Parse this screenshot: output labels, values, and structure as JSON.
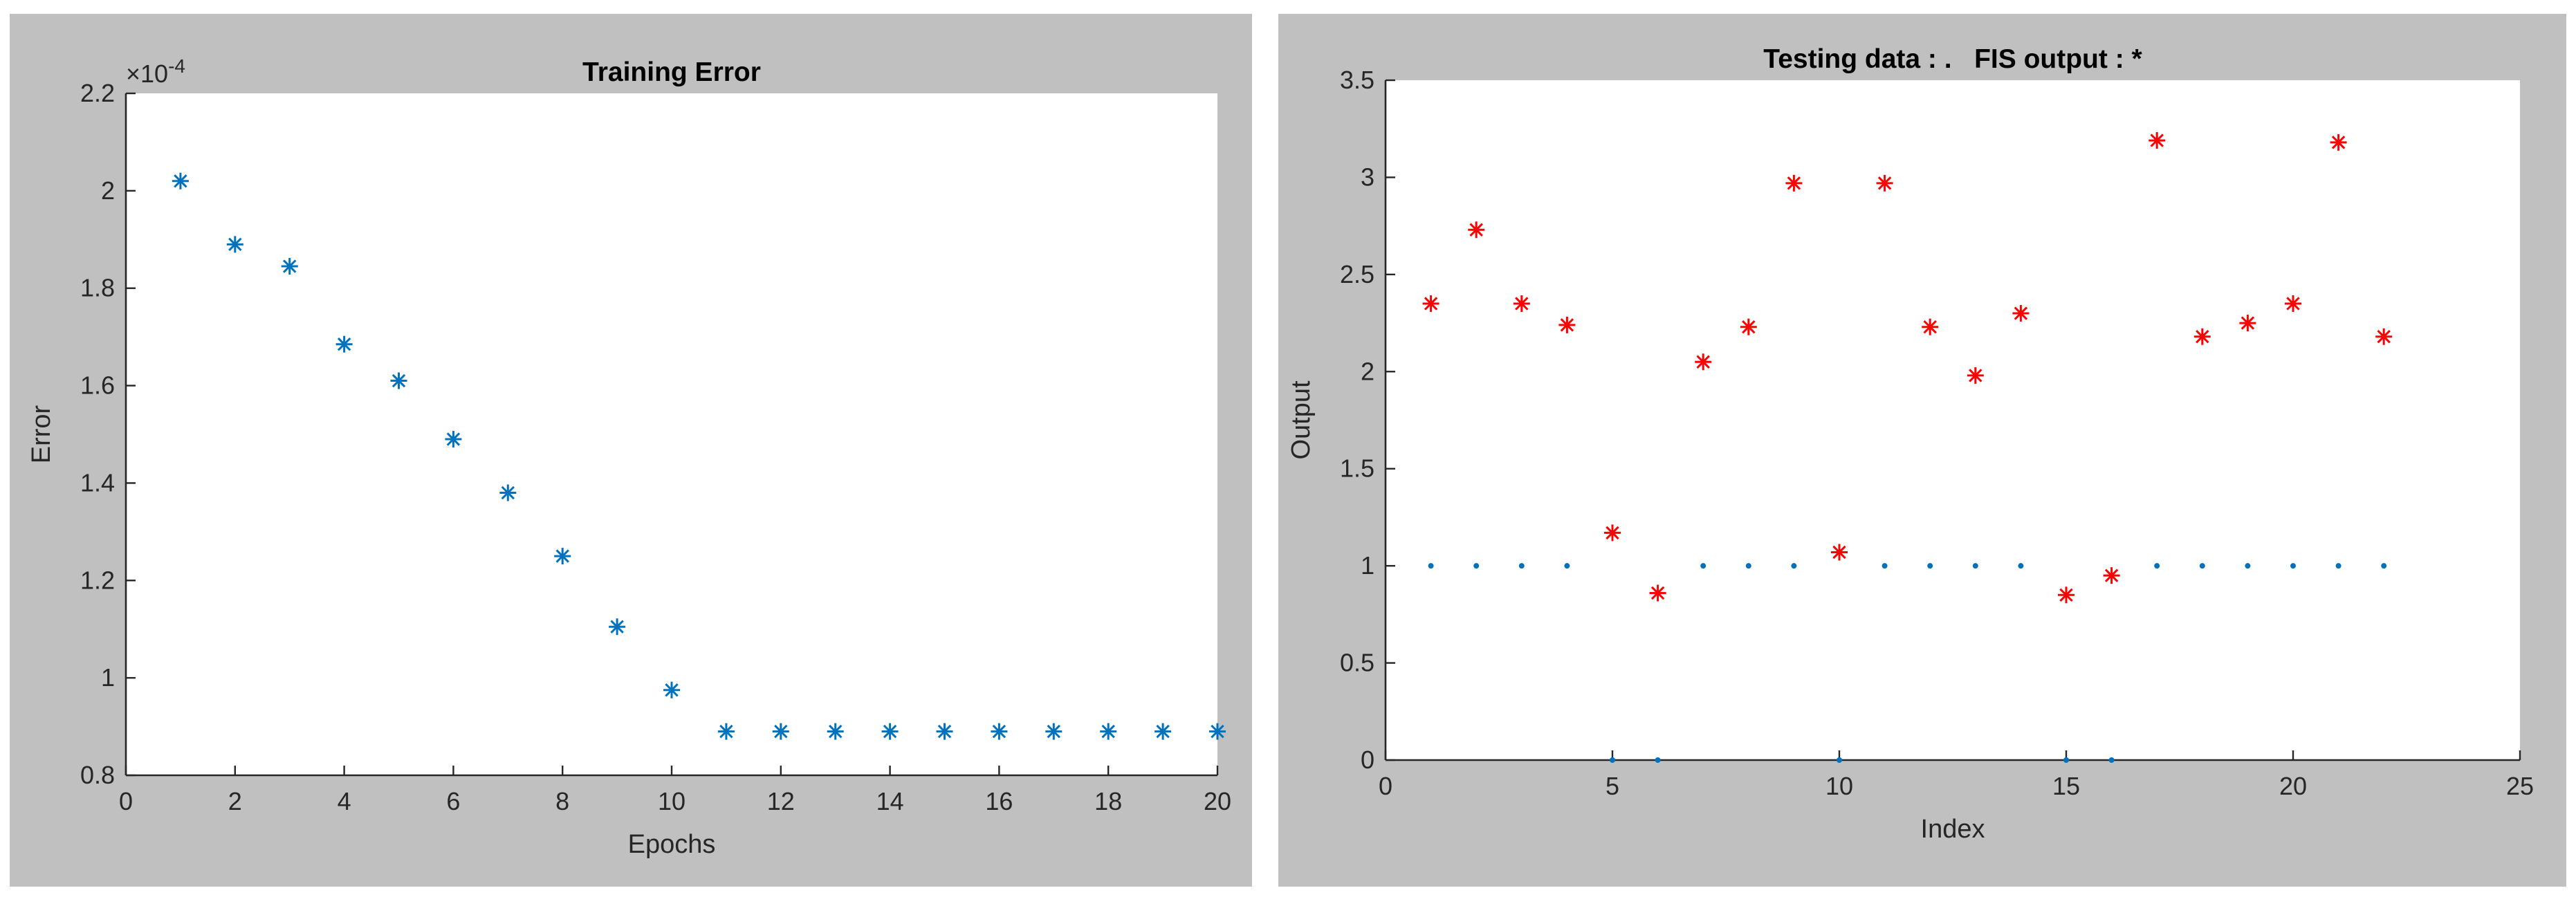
{
  "chart_data": [
    {
      "type": "scatter",
      "title": "Training Error",
      "xlabel": "Epochs",
      "ylabel": "Error",
      "y_exponent_label": "×10",
      "y_exponent": "-4",
      "xlim": [
        0,
        20
      ],
      "ylim": [
        0.8,
        2.2
      ],
      "xticks": [
        "0",
        "2",
        "4",
        "6",
        "8",
        "10",
        "12",
        "14",
        "16",
        "18",
        "20"
      ],
      "yticks": [
        "0.8",
        "1",
        "1.2",
        "1.4",
        "1.6",
        "1.8",
        "2",
        "2.2"
      ],
      "grid": false,
      "marker": "asterisk",
      "color": "#0072bd",
      "series": [
        {
          "x": [
            1,
            2,
            3,
            4,
            5,
            6,
            7,
            8,
            9,
            10,
            11,
            12,
            13,
            14,
            15,
            16,
            17,
            18,
            19,
            20
          ],
          "y": [
            2.02,
            1.89,
            1.845,
            1.685,
            1.61,
            1.49,
            1.38,
            1.25,
            1.105,
            0.975,
            0.89,
            0.89,
            0.89,
            0.89,
            0.89,
            0.89,
            0.89,
            0.89,
            0.89,
            0.89
          ]
        }
      ]
    },
    {
      "type": "scatter",
      "title": "Testing data : .   FIS output : *",
      "xlabel": "Index",
      "ylabel": "Output",
      "xlim": [
        0,
        25
      ],
      "ylim": [
        0,
        3.5
      ],
      "xticks": [
        "0",
        "5",
        "10",
        "15",
        "20",
        "25"
      ],
      "yticks": [
        "0",
        "0.5",
        "1",
        "1.5",
        "2",
        "2.5",
        "3",
        "3.5"
      ],
      "grid": false,
      "series": [
        {
          "marker": "dot",
          "color": "#0072bd",
          "x": [
            1,
            2,
            3,
            4,
            5,
            6,
            7,
            8,
            9,
            10,
            11,
            12,
            13,
            14,
            15,
            16,
            17,
            18,
            19,
            20,
            21,
            22
          ],
          "y": [
            1,
            1,
            1,
            1,
            0,
            0,
            1,
            1,
            1,
            0,
            1,
            1,
            1,
            1,
            0,
            0,
            1,
            1,
            1,
            1,
            1,
            1
          ]
        },
        {
          "marker": "asterisk",
          "color": "#ff0000",
          "x": [
            1,
            2,
            3,
            4,
            5,
            6,
            7,
            8,
            9,
            10,
            11,
            12,
            13,
            14,
            15,
            16,
            17,
            18,
            19,
            20,
            21,
            22
          ],
          "y": [
            2.35,
            2.73,
            2.35,
            2.24,
            1.17,
            0.86,
            2.05,
            2.23,
            2.97,
            1.07,
            2.97,
            2.23,
            1.98,
            2.3,
            0.85,
            0.95,
            3.19,
            2.18,
            2.25,
            2.35,
            3.18,
            2.18
          ]
        }
      ]
    }
  ]
}
